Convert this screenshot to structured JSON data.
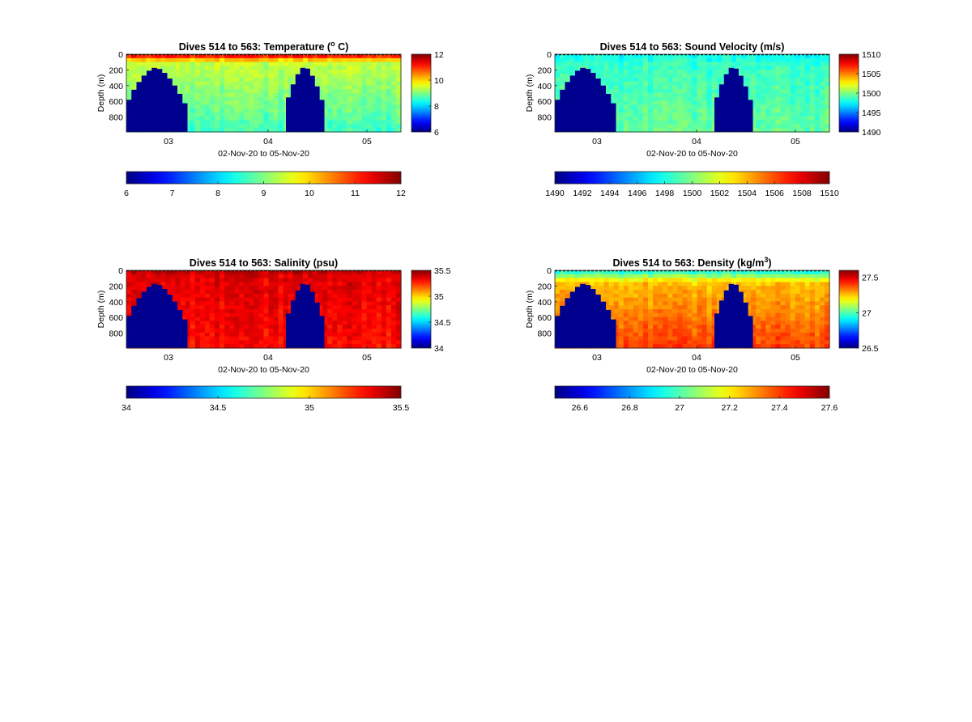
{
  "figure": {
    "background": "#ffffff"
  },
  "colormap": "jet",
  "chart_data": [
    {
      "type": "heatmap",
      "title_main": "Dives 514 to 563: Temperature (",
      "title_sup": "o",
      "title_end": " C)",
      "xlabel": "02-Nov-20 to 05-Nov-20",
      "ylabel": "Depth (m)",
      "x_ticks": [
        "03",
        "04",
        "05"
      ],
      "y_ticks": [
        "0",
        "200",
        "400",
        "600",
        "800"
      ],
      "ylim": [
        0,
        990
      ],
      "clim": [
        6,
        12
      ],
      "colorbar_right_ticks": [
        "12",
        "10",
        "8",
        "6"
      ],
      "colorbar_bottom_ticks": [
        "6",
        "7",
        "8",
        "9",
        "10",
        "11",
        "12"
      ],
      "surface_value": 11.5,
      "deep_value": 9.4,
      "bottom_value": 8.6,
      "thermocline_depth_m": 110,
      "no_data_regions": [
        {
          "from": "02-Nov-20",
          "to": "03-Nov-20",
          "shallowest_depth_m": 170
        },
        {
          "from": "04-Nov-20",
          "to": "04-Nov-20",
          "shallowest_depth_m": 160
        }
      ]
    },
    {
      "type": "heatmap",
      "title_main": "Dives 514 to 563: Sound Velocity (m/s)",
      "title_sup": "",
      "title_end": "",
      "xlabel": "02-Nov-20 to 05-Nov-20",
      "ylabel": "Depth (m)",
      "x_ticks": [
        "03",
        "04",
        "05"
      ],
      "y_ticks": [
        "0",
        "200",
        "400",
        "600",
        "800"
      ],
      "ylim": [
        0,
        990
      ],
      "clim": [
        1490,
        1510
      ],
      "colorbar_right_ticks": [
        "1510",
        "1505",
        "1500",
        "1495",
        "1490"
      ],
      "colorbar_bottom_ticks": [
        "1490",
        "1492",
        "1494",
        "1496",
        "1498",
        "1500",
        "1502",
        "1504",
        "1506",
        "1508",
        "1510"
      ],
      "surface_value": 1497.5,
      "deep_value": 1498.5,
      "bottom_value": 1499.5,
      "thermocline_depth_m": 120,
      "no_data_regions": [
        {
          "from": "02-Nov-20",
          "to": "03-Nov-20",
          "shallowest_depth_m": 170
        },
        {
          "from": "04-Nov-20",
          "to": "04-Nov-20",
          "shallowest_depth_m": 160
        }
      ]
    },
    {
      "type": "heatmap",
      "title_main": "Dives 514 to 563: Salinity (psu)",
      "title_sup": "",
      "title_end": "",
      "xlabel": "02-Nov-20 to 05-Nov-20",
      "ylabel": "Depth (m)",
      "x_ticks": [
        "03",
        "04",
        "05"
      ],
      "y_ticks": [
        "0",
        "200",
        "400",
        "600",
        "800"
      ],
      "ylim": [
        0,
        990
      ],
      "clim": [
        34,
        35.5
      ],
      "colorbar_right_ticks": [
        "35.5",
        "35",
        "34.5",
        "34"
      ],
      "colorbar_bottom_ticks": [
        "34",
        "34.5",
        "35",
        "35.5"
      ],
      "surface_value": 35.4,
      "deep_value": 35.35,
      "bottom_value": 35.3,
      "thermocline_depth_m": 100,
      "no_data_regions": [
        {
          "from": "02-Nov-20",
          "to": "03-Nov-20",
          "shallowest_depth_m": 170
        },
        {
          "from": "04-Nov-20",
          "to": "04-Nov-20",
          "shallowest_depth_m": 160
        }
      ]
    },
    {
      "type": "heatmap",
      "title_main": "Dives 514 to 563: Density (kg/m",
      "title_sup": "3",
      "title_end": ")",
      "xlabel": "02-Nov-20 to 05-Nov-20",
      "ylabel": "Depth (m)",
      "x_ticks": [
        "03",
        "04",
        "05"
      ],
      "y_ticks": [
        "0",
        "200",
        "400",
        "600",
        "800"
      ],
      "ylim": [
        0,
        990
      ],
      "clim": [
        26.5,
        27.6
      ],
      "colorbar_right_ticks": [
        "27.5",
        "27",
        "26.5"
      ],
      "colorbar_bottom_ticks": [
        "26.6",
        "26.8",
        "27",
        "27.2",
        "27.4",
        "27.6"
      ],
      "surface_value": 26.9,
      "deep_value": 27.25,
      "bottom_value": 27.4,
      "thermocline_depth_m": 150,
      "no_data_regions": [
        {
          "from": "02-Nov-20",
          "to": "03-Nov-20",
          "shallowest_depth_m": 170
        },
        {
          "from": "04-Nov-20",
          "to": "04-Nov-20",
          "shallowest_depth_m": 160
        }
      ]
    }
  ]
}
